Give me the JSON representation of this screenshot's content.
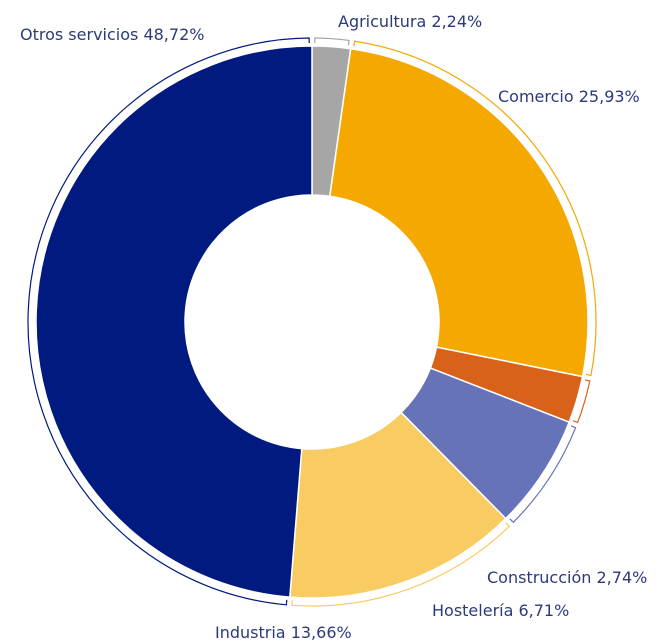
{
  "chart_data": {
    "type": "donut",
    "categories": [
      "Agricultura",
      "Comercio",
      "Construcción",
      "Hostelería",
      "Industria",
      "Otros servicios"
    ],
    "values": [
      2.24,
      25.93,
      2.74,
      6.71,
      13.66,
      48.72
    ],
    "value_labels": [
      "2,24%",
      "25,93%",
      "2,74%",
      "6,71%",
      "13,66%",
      "48,72%"
    ],
    "colors": [
      "#a6a6a6",
      "#f5a800",
      "#d9621a",
      "#6673b8",
      "#f9cb63",
      "#001a80"
    ]
  }
}
